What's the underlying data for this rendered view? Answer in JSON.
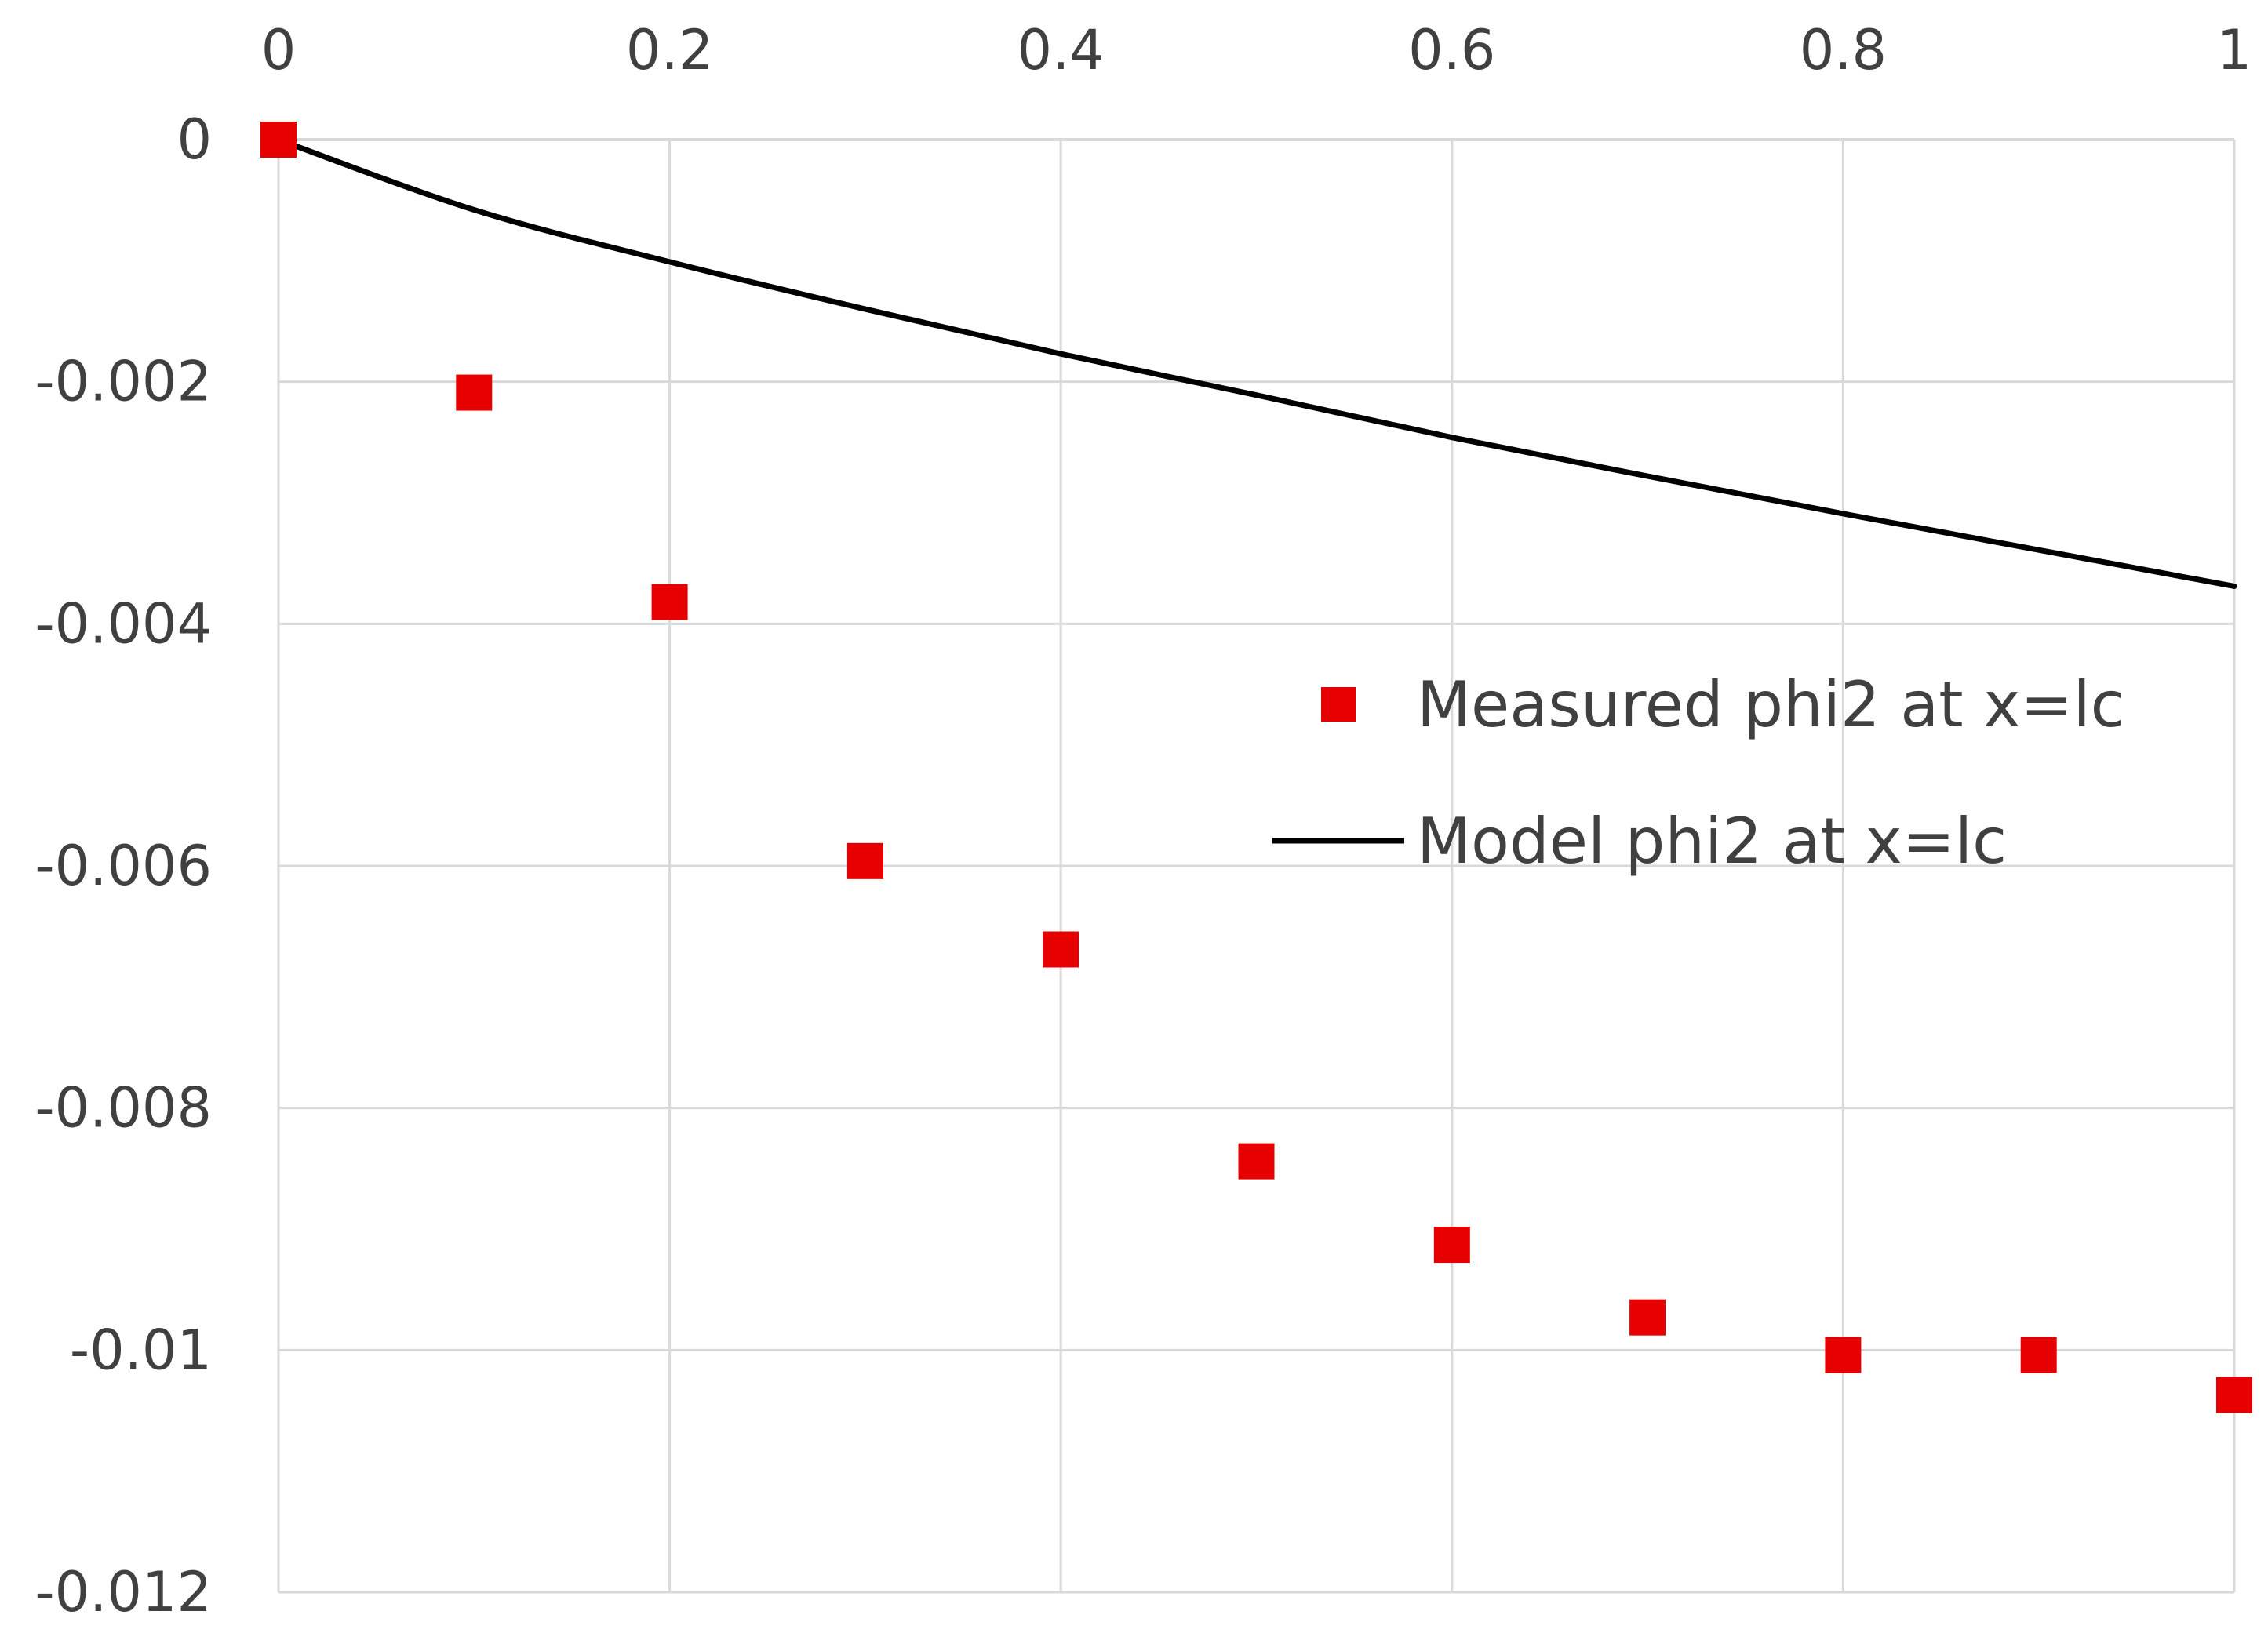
{
  "chart_data": {
    "type": "scatter",
    "xlim": [
      0,
      1
    ],
    "ylim": [
      -0.012,
      0
    ],
    "x_ticks": [
      "0",
      "0.2",
      "0.4",
      "0.6",
      "0.8",
      "1"
    ],
    "y_ticks": [
      "0",
      "-0.002",
      "-0.004",
      "-0.006",
      "-0.008",
      "-0.01",
      "-0.012"
    ],
    "x_axis_position": "top",
    "grid": true,
    "legend_position": "center-right",
    "series": [
      {
        "name": "Measured phi2 at x=lc",
        "kind": "markers",
        "marker": "square",
        "color": "#e60000",
        "x": [
          0,
          0.1,
          0.2,
          0.3,
          0.4,
          0.5,
          0.6,
          0.7,
          0.8,
          0.9,
          1.0
        ],
        "y": [
          0,
          -0.00209,
          -0.00382,
          -0.00596,
          -0.00669,
          -0.00844,
          -0.00913,
          -0.00973,
          -0.01004,
          -0.01004,
          -0.01037
        ]
      },
      {
        "name": "Model phi2 at x=lc",
        "kind": "line",
        "color": "#000000",
        "x": [
          0,
          0.1,
          0.2,
          0.3,
          0.4,
          0.5,
          0.6,
          0.7,
          0.8,
          0.9,
          1.0
        ],
        "y": [
          0,
          -0.00058,
          -0.00101,
          -0.0014,
          -0.00177,
          -0.00211,
          -0.00246,
          -0.00278,
          -0.00309,
          -0.00339,
          -0.00369
        ]
      }
    ]
  }
}
